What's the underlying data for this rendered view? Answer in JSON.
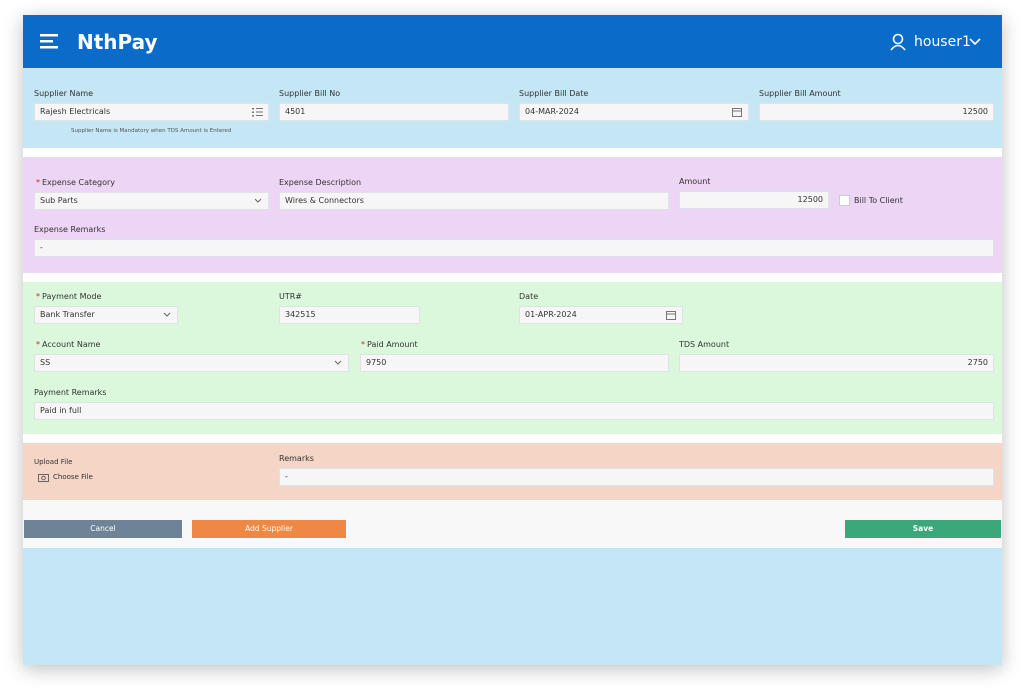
{
  "header": {
    "brand": "NthPay",
    "user": "houser1"
  },
  "required_mark": "*",
  "supplier": {
    "name": {
      "label": "Supplier Name",
      "value": "Rajesh Electricals",
      "hint": "Supplier Name is Mandatory when TDS Amount is Entered"
    },
    "bill_no": {
      "label": "Supplier Bill No",
      "value": "4501"
    },
    "bill_date": {
      "label": "Supplier Bill Date",
      "value": "04-MAR-2024"
    },
    "bill_amount": {
      "label": "Supplier Bill Amount",
      "value": "12500"
    }
  },
  "expense": {
    "category": {
      "label": "Expense Category",
      "value": "Sub Parts"
    },
    "description": {
      "label": "Expense Description",
      "value": "Wires & Connectors"
    },
    "amount": {
      "label": "Amount",
      "value": "12500"
    },
    "bill_to_client": "Bill To Client",
    "remarks": {
      "label": "Expense Remarks",
      "value": "-"
    }
  },
  "payment": {
    "mode": {
      "label": "Payment Mode",
      "value": "Bank Transfer"
    },
    "utr": {
      "label": "UTR#",
      "value": "342515"
    },
    "date": {
      "label": "Date",
      "value": "01-APR-2024"
    },
    "account": {
      "label": "Account Name",
      "value": "SS"
    },
    "paid_amount": {
      "label": "Paid Amount",
      "value": "9750"
    },
    "tds_amount": {
      "label": "TDS Amount",
      "value": "2750"
    },
    "remarks": {
      "label": "Payment Remarks",
      "value": "Paid in full"
    }
  },
  "upload": {
    "label": "Upload File",
    "button": "Choose File",
    "remarks": {
      "label": "Remarks",
      "value": "-"
    }
  },
  "buttons": {
    "cancel": "Cancel",
    "add_supplier": "Add Supplier",
    "save": "Save"
  }
}
